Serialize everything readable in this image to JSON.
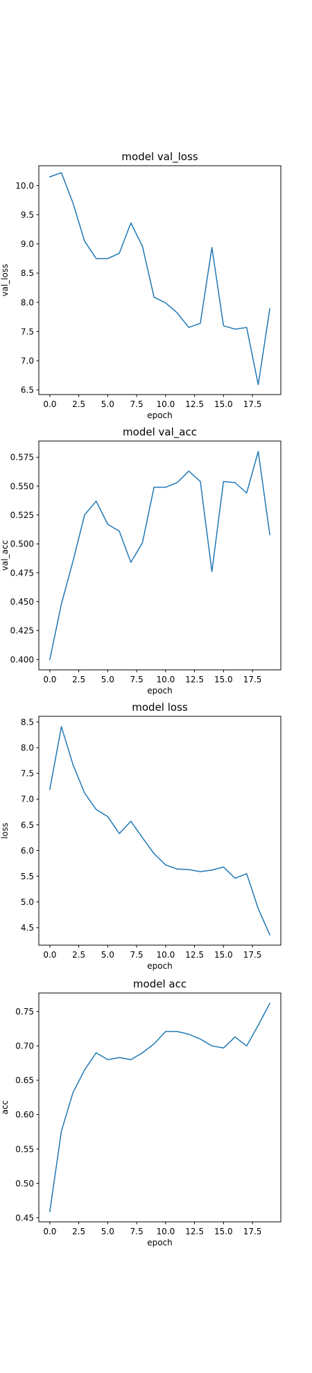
{
  "chart_data": [
    {
      "type": "line",
      "title": "model val_loss",
      "xlabel": "epoch",
      "ylabel": "val_loss",
      "xlim": [
        -0.95,
        19.95
      ],
      "ylim": [
        6.42,
        10.34
      ],
      "xticks": [
        "0.0",
        "2.5",
        "5.0",
        "7.5",
        "10.0",
        "12.5",
        "15.0",
        "17.5"
      ],
      "yticks": [
        "6.5",
        "7.0",
        "7.5",
        "8.0",
        "8.5",
        "9.0",
        "9.5",
        "10.0"
      ],
      "grid": false,
      "color": "#1f77b4",
      "x": [
        0,
        1,
        2,
        3,
        4,
        5,
        6,
        7,
        8,
        9,
        10,
        11,
        12,
        13,
        14,
        15,
        16,
        17,
        18,
        19
      ],
      "y": [
        10.15,
        10.22,
        9.7,
        9.05,
        8.75,
        8.75,
        8.84,
        9.36,
        8.96,
        8.09,
        7.99,
        7.82,
        7.57,
        7.64,
        8.94,
        7.6,
        7.54,
        7.57,
        6.59,
        7.89
      ]
    },
    {
      "type": "line",
      "title": "model val_acc",
      "xlabel": "epoch",
      "ylabel": "val_acc",
      "xlim": [
        -0.95,
        19.95
      ],
      "ylim": [
        0.391,
        0.589
      ],
      "xticks": [
        "0.0",
        "2.5",
        "5.0",
        "7.5",
        "10.0",
        "12.5",
        "15.0",
        "17.5"
      ],
      "yticks": [
        "0.400",
        "0.425",
        "0.450",
        "0.475",
        "0.500",
        "0.525",
        "0.550",
        "0.575"
      ],
      "grid": false,
      "color": "#1f77b4",
      "x": [
        0,
        1,
        2,
        3,
        4,
        5,
        6,
        7,
        8,
        9,
        10,
        11,
        12,
        13,
        14,
        15,
        16,
        17,
        18,
        19
      ],
      "y": [
        0.4,
        0.448,
        0.485,
        0.525,
        0.537,
        0.517,
        0.511,
        0.484,
        0.501,
        0.549,
        0.549,
        0.553,
        0.563,
        0.554,
        0.476,
        0.554,
        0.553,
        0.544,
        0.58,
        0.508
      ]
    },
    {
      "type": "line",
      "title": "model loss",
      "xlabel": "epoch",
      "ylabel": "loss",
      "xlim": [
        -0.95,
        19.95
      ],
      "ylim": [
        4.16,
        8.61
      ],
      "xticks": [
        "0.0",
        "2.5",
        "5.0",
        "7.5",
        "10.0",
        "12.5",
        "15.0",
        "17.5"
      ],
      "yticks": [
        "4.5",
        "5.0",
        "5.5",
        "6.0",
        "6.5",
        "7.0",
        "7.5",
        "8.0",
        "8.5"
      ],
      "grid": false,
      "color": "#1f77b4",
      "x": [
        0,
        1,
        2,
        3,
        4,
        5,
        6,
        7,
        8,
        9,
        10,
        11,
        12,
        13,
        14,
        15,
        16,
        17,
        18,
        19
      ],
      "y": [
        7.19,
        8.41,
        7.67,
        7.12,
        6.8,
        6.66,
        6.33,
        6.57,
        6.25,
        5.94,
        5.72,
        5.64,
        5.63,
        5.59,
        5.62,
        5.68,
        5.46,
        5.55,
        4.87,
        4.36
      ]
    },
    {
      "type": "line",
      "title": "model acc",
      "xlabel": "epoch",
      "ylabel": "acc",
      "xlim": [
        -0.95,
        19.95
      ],
      "ylim": [
        0.444,
        0.777
      ],
      "xticks": [
        "0.0",
        "2.5",
        "5.0",
        "7.5",
        "10.0",
        "12.5",
        "15.0",
        "17.5"
      ],
      "yticks": [
        "0.45",
        "0.50",
        "0.55",
        "0.60",
        "0.65",
        "0.70",
        "0.75"
      ],
      "grid": false,
      "color": "#1f77b4",
      "x": [
        0,
        1,
        2,
        3,
        4,
        5,
        6,
        7,
        8,
        9,
        10,
        11,
        12,
        13,
        14,
        15,
        16,
        17,
        18,
        19
      ],
      "y": [
        0.459,
        0.576,
        0.632,
        0.665,
        0.69,
        0.68,
        0.683,
        0.68,
        0.69,
        0.703,
        0.721,
        0.721,
        0.717,
        0.71,
        0.7,
        0.697,
        0.713,
        0.7,
        0.73,
        0.762
      ]
    }
  ]
}
